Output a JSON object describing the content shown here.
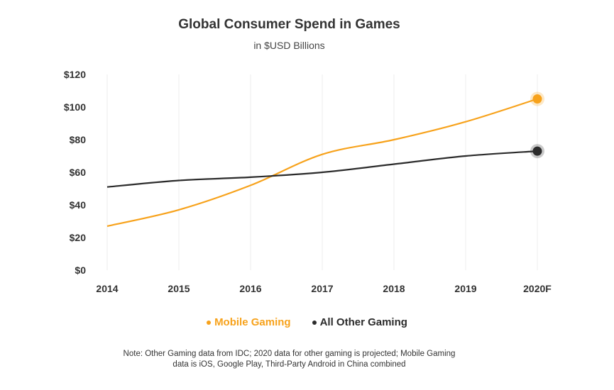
{
  "chart_data": {
    "type": "line",
    "title": "Global Consumer Spend in Games",
    "subtitle": "in $USD Billions",
    "categories": [
      "2014",
      "2015",
      "2016",
      "2017",
      "2018",
      "2019",
      "2020F"
    ],
    "y_ticks": [
      "$0",
      "$20",
      "$40",
      "$60",
      "$80",
      "$100",
      "$120"
    ],
    "ylim": [
      0,
      120
    ],
    "grid": "vertical",
    "legend_position": "bottom",
    "series": [
      {
        "name": "Mobile Gaming",
        "color": "#F7A21B",
        "values": [
          27,
          37,
          52,
          71,
          80,
          91,
          105
        ]
      },
      {
        "name": "All Other Gaming",
        "color": "#2B2B2B",
        "values": [
          51,
          55,
          57,
          60,
          65,
          70,
          73
        ]
      }
    ],
    "note_lines": [
      "Note: Other Gaming data from IDC; 2020 data for other gaming is projected; Mobile Gaming",
      "data is iOS, Google Play, Third-Party Android in China combined"
    ]
  }
}
